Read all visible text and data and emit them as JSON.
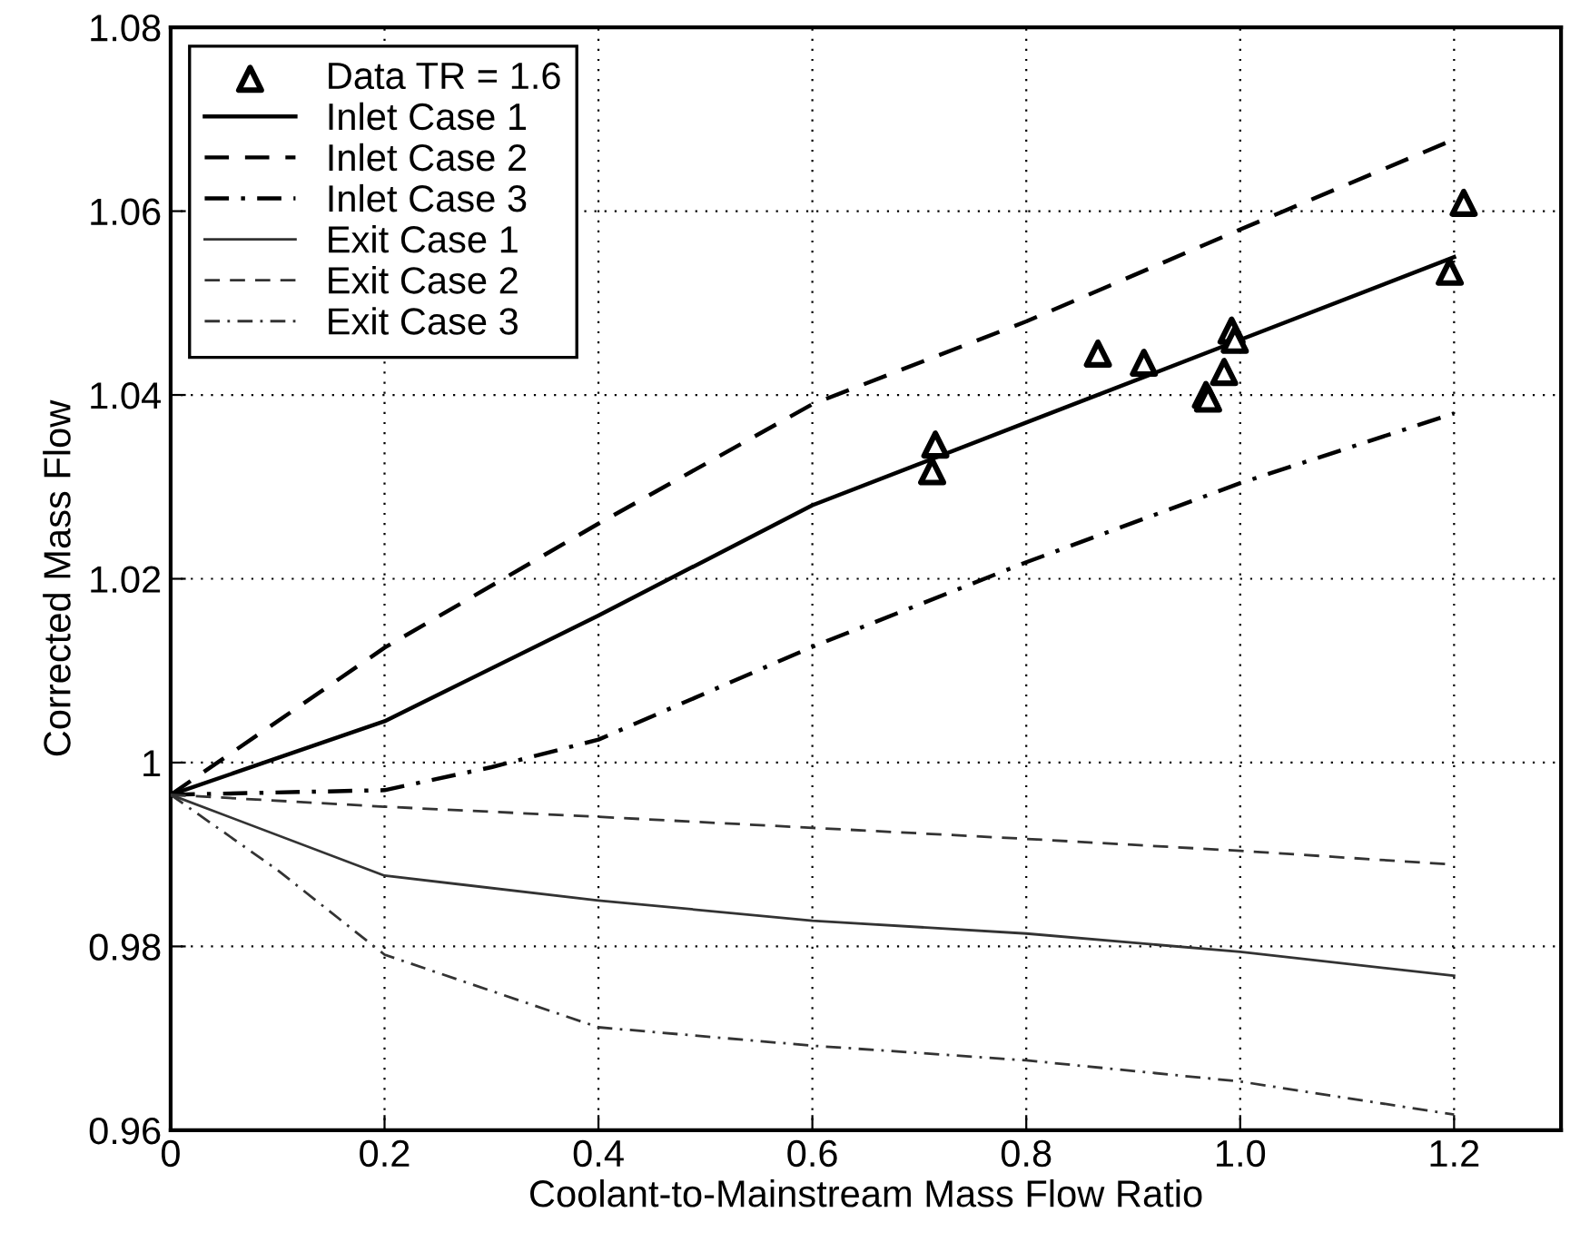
{
  "chart_data": {
    "type": "line",
    "xlabel": "Coolant-to-Mainstream Mass Flow Ratio",
    "ylabel": "Corrected Mass Flow",
    "xlim": [
      0,
      1.3
    ],
    "ylim": [
      0.96,
      1.08
    ],
    "xticks": [
      0,
      0.2,
      0.4,
      0.6,
      0.8,
      {
        "value": 1.0,
        "label": "1.0"
      },
      1.2
    ],
    "yticks": [
      0.96,
      0.98,
      1,
      1.02,
      1.04,
      1.06,
      1.08
    ],
    "grid": true,
    "legend": "top left",
    "series": [
      {
        "name": "Data TR = 1.6",
        "type": "scatter",
        "marker": "triangle",
        "color": "#000000",
        "x": [
          0.715,
          0.712,
          0.867,
          0.91,
          0.992,
          0.995,
          0.985,
          0.968,
          0.97,
          1.209,
          1.196
        ],
        "values": [
          1.0346,
          1.0317,
          1.0445,
          1.0435,
          1.047,
          1.046,
          1.0425,
          1.04,
          1.0396,
          1.0609,
          1.0534
        ]
      },
      {
        "name": "Inlet Case 1",
        "line_style": "solid",
        "color": "#000000",
        "x": [
          0,
          0.2,
          0.4,
          0.6,
          0.8,
          1.0,
          1.2
        ],
        "values": [
          0.9965,
          1.0045,
          1.016,
          1.028,
          1.037,
          1.046,
          1.055
        ]
      },
      {
        "name": "Inlet Case 2",
        "line_style": "dashed",
        "color": "#000000",
        "x": [
          0,
          0.2,
          0.4,
          0.6,
          0.8,
          1.0,
          1.2
        ],
        "values": [
          0.9965,
          1.0125,
          1.026,
          1.039,
          1.048,
          1.058,
          1.0678
        ]
      },
      {
        "name": "Inlet Case 3",
        "line_style": "dashdot",
        "color": "#000000",
        "x": [
          0,
          0.2,
          0.3,
          0.4,
          0.6,
          0.8,
          1.0,
          1.2
        ],
        "values": [
          0.9965,
          0.997,
          0.9995,
          1.0025,
          1.0126,
          1.0218,
          1.0304,
          1.038
        ]
      },
      {
        "name": "Exit Case 1",
        "line_style": "solid",
        "color": "#333333",
        "x": [
          0,
          0.2,
          0.4,
          0.6,
          0.8,
          1.0,
          1.2
        ],
        "values": [
          0.9965,
          0.9877,
          0.985,
          0.9828,
          0.9814,
          0.9794,
          0.9768
        ]
      },
      {
        "name": "Exit Case 2",
        "line_style": "dashed",
        "color": "#333333",
        "x": [
          0,
          0.2,
          0.4,
          0.6,
          0.8,
          1.0,
          1.2
        ],
        "values": [
          0.9965,
          0.9952,
          0.9941,
          0.9929,
          0.9917,
          0.9904,
          0.9889
        ]
      },
      {
        "name": "Exit Case 3",
        "line_style": "dashdot",
        "color": "#333333",
        "x": [
          0,
          0.1,
          0.2,
          0.4,
          0.6,
          0.8,
          1.0,
          1.2
        ],
        "values": [
          0.9965,
          0.9883,
          0.9791,
          0.9712,
          0.9692,
          0.9676,
          0.9653,
          0.9617
        ]
      }
    ]
  }
}
